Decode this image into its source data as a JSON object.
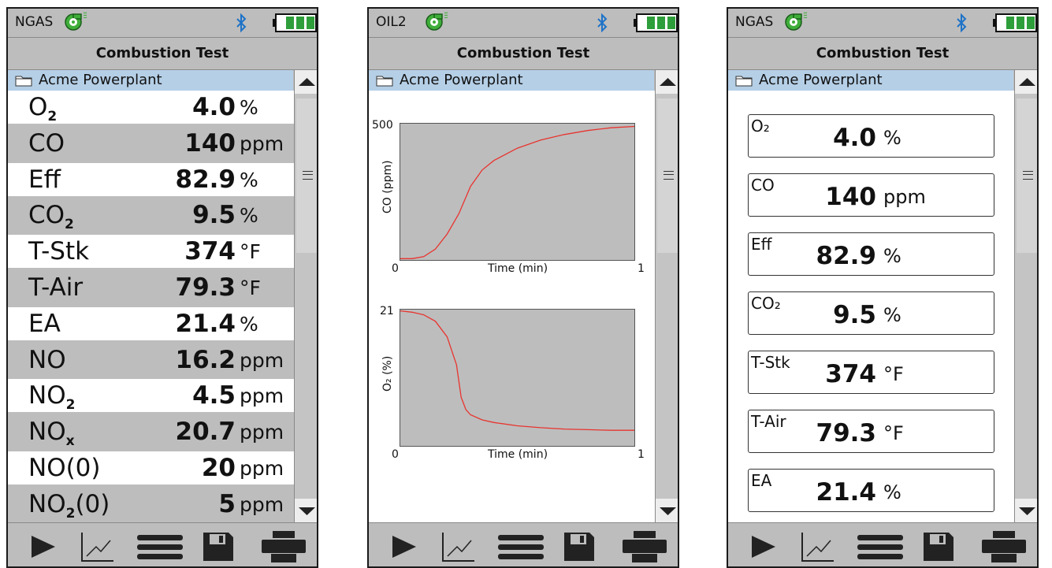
{
  "colors": {
    "bezel": "#bdbdbd",
    "folder_bar": "#b5cfe6",
    "battery": "#2e9e3a",
    "bluetooth": "#1e73c8",
    "fan": "#3fae3a",
    "curve": "#e8342f"
  },
  "icons": {
    "status": [
      "fan-icon",
      "bluetooth-icon",
      "battery-icon"
    ],
    "toolbar": [
      "play-icon",
      "graph-icon",
      "menu-icon",
      "save-icon",
      "print-icon"
    ],
    "folder": "folder-icon"
  },
  "screen_list": {
    "fuel": "NGAS",
    "title": "Combustion Test",
    "folder": "Acme Powerplant",
    "rows": [
      {
        "label": "O",
        "sub": "2",
        "suffix": "",
        "value": "4.0",
        "unit": "%"
      },
      {
        "label": "CO",
        "sub": "",
        "suffix": "",
        "value": "140",
        "unit": "ppm"
      },
      {
        "label": "Eff",
        "sub": "",
        "suffix": "",
        "value": "82.9",
        "unit": "%"
      },
      {
        "label": "CO",
        "sub": "2",
        "suffix": "",
        "value": "9.5",
        "unit": "%"
      },
      {
        "label": "T-Stk",
        "sub": "",
        "suffix": "",
        "value": "374",
        "unit": "°F"
      },
      {
        "label": "T-Air",
        "sub": "",
        "suffix": "",
        "value": "79.3",
        "unit": "°F"
      },
      {
        "label": "EA",
        "sub": "",
        "suffix": "",
        "value": "21.4",
        "unit": "%"
      },
      {
        "label": "NO",
        "sub": "",
        "suffix": "",
        "value": "16.2",
        "unit": "ppm"
      },
      {
        "label": "NO",
        "sub": "2",
        "suffix": "",
        "value": "4.5",
        "unit": "ppm"
      },
      {
        "label": "NO",
        "sub": "x",
        "suffix": "",
        "value": "20.7",
        "unit": "ppm"
      },
      {
        "label": "NO(0)",
        "sub": "",
        "suffix": "",
        "value": "20",
        "unit": "ppm"
      },
      {
        "label": "NO",
        "sub": "2",
        "suffix": "(0)",
        "value": "5",
        "unit": "ppm"
      }
    ]
  },
  "screen_graph": {
    "fuel": "OIL2",
    "title": "Combustion Test",
    "folder": "Acme Powerplant",
    "chart_data": [
      {
        "type": "line",
        "ylabel": "CO (ppm)",
        "xlabel": "Time (min)",
        "xlim": [
          0,
          1
        ],
        "ylim": [
          0,
          500
        ],
        "y_ticks": [
          "0",
          "500"
        ],
        "x_ticks": [
          "0",
          "1"
        ],
        "series": [
          {
            "x": [
              0,
              0.05,
              0.1,
              0.15,
              0.2,
              0.25,
              0.3,
              0.35,
              0.4,
              0.5,
              0.6,
              0.7,
              0.8,
              0.9,
              1
            ],
            "y": [
              5,
              5,
              12,
              40,
              95,
              170,
              270,
              330,
              365,
              410,
              440,
              460,
              475,
              485,
              490
            ]
          }
        ]
      },
      {
        "type": "line",
        "ylabel": "O₂ (%)",
        "xlabel": "Time (min)",
        "xlim": [
          0,
          1
        ],
        "ylim": [
          0,
          21
        ],
        "y_ticks": [
          "0",
          "21"
        ],
        "x_ticks": [
          "0",
          "1"
        ],
        "series": [
          {
            "x": [
              0,
              0.05,
              0.1,
              0.15,
              0.2,
              0.24,
              0.26,
              0.28,
              0.3,
              0.35,
              0.4,
              0.5,
              0.6,
              0.7,
              0.8,
              0.9,
              1
            ],
            "y": [
              20.8,
              20.6,
              20.2,
              19.2,
              16.8,
              12.5,
              7.5,
              5.6,
              4.8,
              4.0,
              3.6,
              3.1,
              2.8,
              2.6,
              2.5,
              2.4,
              2.4
            ]
          }
        ]
      }
    ]
  },
  "screen_tiles": {
    "fuel": "NGAS",
    "title": "Combustion Test",
    "folder": "Acme Powerplant",
    "tiles": [
      {
        "label": "O₂",
        "value": "4.0",
        "unit": "%"
      },
      {
        "label": "CO",
        "value": "140",
        "unit": "ppm"
      },
      {
        "label": "Eff",
        "value": "82.9",
        "unit": "%"
      },
      {
        "label": "CO₂",
        "value": "9.5",
        "unit": "%"
      },
      {
        "label": "T-Stk",
        "value": "374",
        "unit": "°F"
      },
      {
        "label": "T-Air",
        "value": "79.3",
        "unit": "°F"
      },
      {
        "label": "EA",
        "value": "21.4",
        "unit": "%"
      }
    ]
  }
}
